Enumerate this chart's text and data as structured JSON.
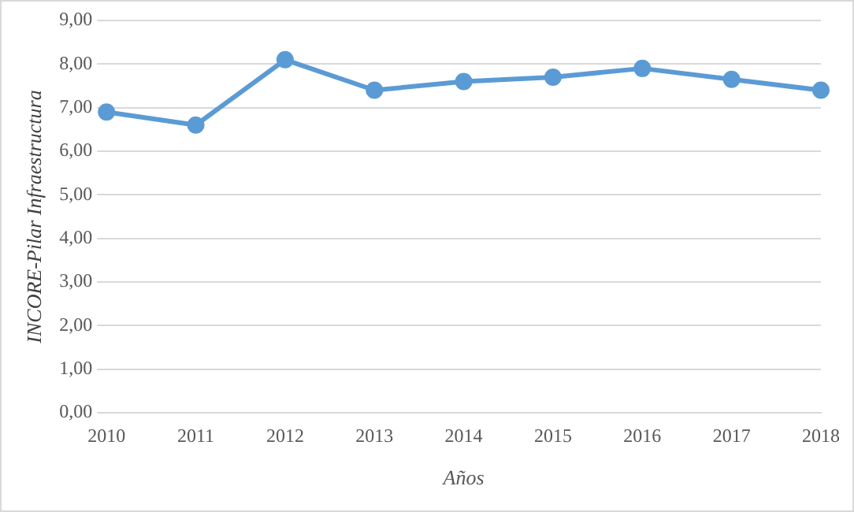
{
  "chart_data": {
    "type": "line",
    "xlabel": "Años",
    "ylabel": "INCORE-Pilar Infraestructura",
    "categories": [
      "2010",
      "2011",
      "2012",
      "2013",
      "2014",
      "2015",
      "2016",
      "2017",
      "2018"
    ],
    "series": [
      {
        "color": "#5b9bd5",
        "values": [
          6.9,
          6.6,
          8.1,
          7.4,
          7.6,
          7.7,
          7.9,
          7.65,
          7.4
        ]
      }
    ],
    "ylim": [
      0,
      9
    ],
    "yticks": [
      {
        "value": 0,
        "label": "0,00"
      },
      {
        "value": 1,
        "label": "1,00"
      },
      {
        "value": 2,
        "label": "2,00"
      },
      {
        "value": 3,
        "label": "3,00"
      },
      {
        "value": 4,
        "label": "4,00"
      },
      {
        "value": 5,
        "label": "5,00"
      },
      {
        "value": 6,
        "label": "6,00"
      },
      {
        "value": 7,
        "label": "7,00"
      },
      {
        "value": 8,
        "label": "8,00"
      },
      {
        "value": 9,
        "label": "9,00"
      }
    ],
    "grid": "y",
    "legend": false,
    "marker": "circle",
    "line_style": "solid"
  }
}
